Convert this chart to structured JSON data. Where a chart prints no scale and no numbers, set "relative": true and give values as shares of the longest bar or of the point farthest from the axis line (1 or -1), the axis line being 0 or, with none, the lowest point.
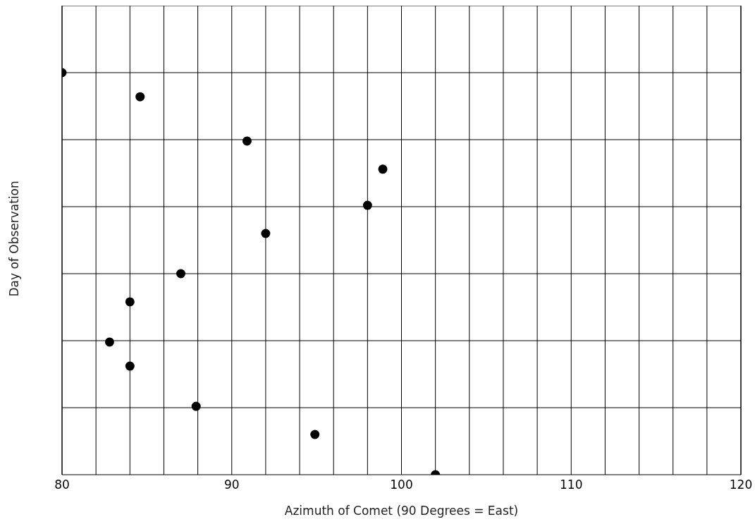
{
  "chart_data": {
    "type": "scatter",
    "xlabel": "Azimuth of Comet (90 Degrees = East)",
    "ylabel": "Day of Observation",
    "relative": true,
    "x": [
      80,
      84.6,
      90.9,
      98.9,
      98,
      92,
      87,
      84,
      82.8,
      84,
      87.9,
      94.9,
      102
    ],
    "series": [
      {
        "color": "#000000",
        "values": [
          1,
          0.94,
          0.83,
          0.76,
          0.67,
          0.6,
          0.5,
          0.43,
          0.33,
          0.27,
          0.17,
          0.1,
          0
        ]
      }
    ],
    "xlim": [
      80,
      120
    ],
    "xticks": [
      80,
      {
        "value": 82,
        "label": null
      },
      {
        "value": 84,
        "label": null
      },
      {
        "value": 86,
        "label": null
      },
      {
        "value": 88,
        "label": null
      },
      90,
      {
        "value": 92,
        "label": null
      },
      {
        "value": 94,
        "label": null
      },
      {
        "value": 96,
        "label": null
      },
      {
        "value": 98,
        "label": null
      },
      100,
      {
        "value": 102,
        "label": null
      },
      {
        "value": 104,
        "label": null
      },
      {
        "value": 106,
        "label": null
      },
      {
        "value": 108,
        "label": null
      },
      110,
      {
        "value": 112,
        "label": null
      },
      {
        "value": 114,
        "label": null
      },
      {
        "value": 116,
        "label": null
      },
      {
        "value": 118,
        "label": null
      },
      120
    ],
    "grid": true,
    "marker": "circle"
  }
}
